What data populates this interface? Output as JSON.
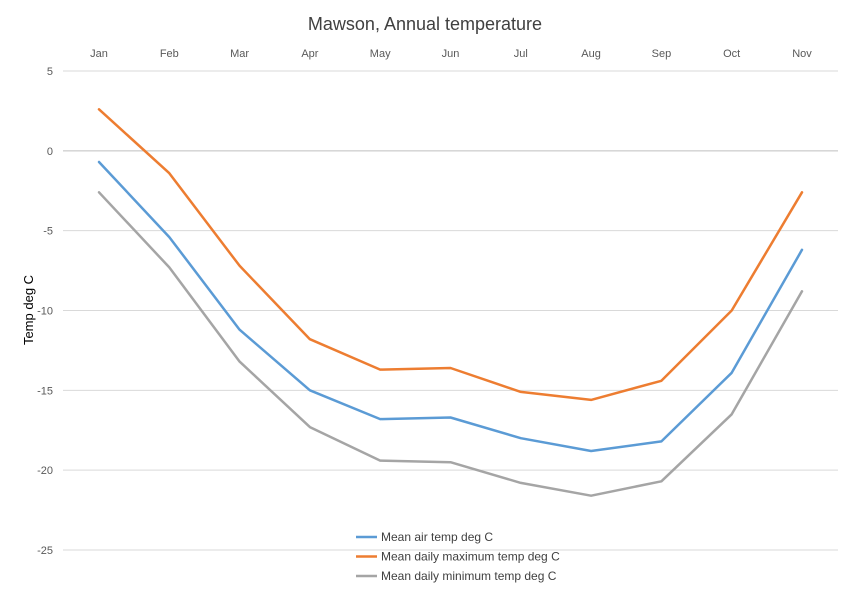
{
  "chart_data": {
    "type": "line",
    "title": "Mawson, Annual temperature",
    "xlabel": "",
    "ylabel": "Temp deg C",
    "categories": [
      "Jan",
      "Feb",
      "Mar",
      "Apr",
      "May",
      "Jun",
      "Jul",
      "Aug",
      "Sep",
      "Oct",
      "Nov"
    ],
    "yticks": [
      "5",
      "0",
      "-5",
      "-10",
      "-15",
      "-20",
      "-25"
    ],
    "ylim": [
      -25,
      5
    ],
    "grid": true,
    "x_axis_position": "top",
    "legend_position": "bottom",
    "series": [
      {
        "name": "Mean air temp deg C",
        "color": "#5B9BD5",
        "values": [
          -0.7,
          -5.4,
          -11.2,
          -15.0,
          -16.8,
          -16.7,
          -18.0,
          -18.8,
          -18.2,
          -13.9,
          -6.2
        ]
      },
      {
        "name": "Mean daily maximum temp deg C",
        "color": "#ED7D31",
        "values": [
          2.6,
          -1.4,
          -7.2,
          -11.8,
          -13.7,
          -13.6,
          -15.1,
          -15.6,
          -14.4,
          -10.0,
          -2.6
        ]
      },
      {
        "name": "Mean daily minimum temp deg C",
        "color": "#A5A5A5",
        "values": [
          -2.6,
          -7.3,
          -13.2,
          -17.3,
          -19.4,
          -19.5,
          -20.8,
          -21.6,
          -20.7,
          -16.5,
          -8.8
        ]
      }
    ]
  }
}
